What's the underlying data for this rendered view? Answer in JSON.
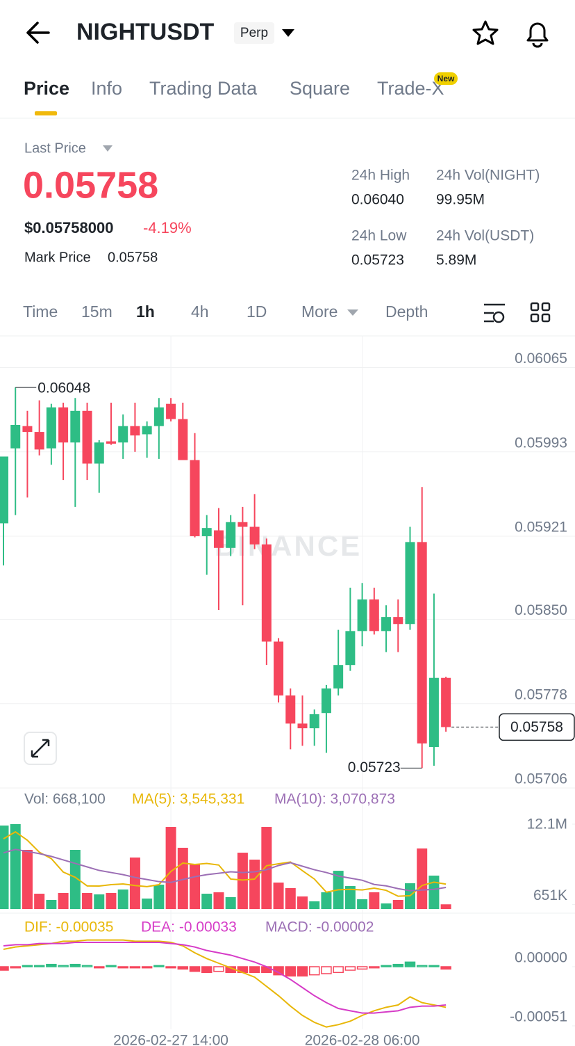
{
  "header": {
    "symbol": "NIGHTUSDT",
    "badge": "Perp"
  },
  "tabs": {
    "items": [
      "Price",
      "Info",
      "Trading Data",
      "Square",
      "Trade-X"
    ],
    "new_badge": "New"
  },
  "ticker": {
    "last_price_label": "Last Price",
    "last_price": "0.05758",
    "usd_price": "$0.05758000",
    "change": "-4.19%",
    "mark_label": "Mark Price",
    "mark_price": "0.05758",
    "stats": [
      {
        "label": "24h High",
        "value": "0.06040"
      },
      {
        "label": "24h Vol(NIGHT)",
        "value": "99.95M"
      },
      {
        "label": "24h Low",
        "value": "0.05723"
      },
      {
        "label": "24h Vol(USDT)",
        "value": "5.89M"
      }
    ]
  },
  "intervals": [
    "Time",
    "15m",
    "1h",
    "4h",
    "1D",
    "More",
    "Depth"
  ],
  "chart_data": [
    {
      "type": "candlestick",
      "watermark": "BINANCE",
      "up_color": "#2ebd85",
      "down_color": "#f6465d",
      "open": [
        0.05932,
        0.05996,
        0.06015,
        0.0601,
        0.05996,
        0.06031,
        0.06001,
        0.06028,
        0.05983,
        0.06002,
        0.06001,
        0.06015,
        0.06008,
        0.06015,
        0.06034,
        0.06021,
        0.05986,
        0.05921,
        0.05926,
        0.05911,
        0.05933,
        0.05929,
        0.05914,
        0.05831,
        0.05785,
        0.05761,
        0.05757,
        0.0577,
        0.05791,
        0.05811,
        0.0584,
        0.05867,
        0.0584,
        0.05852,
        0.05846,
        0.05916,
        0.05741,
        0.058
      ],
      "high": [
        0.05989,
        0.06048,
        0.06028,
        0.06037,
        0.06034,
        0.06035,
        0.06039,
        0.06035,
        0.06003,
        0.06035,
        0.06025,
        0.06035,
        0.06019,
        0.06039,
        0.06039,
        0.06035,
        0.06009,
        0.05939,
        0.05945,
        0.05939,
        0.05946,
        0.05957,
        0.05919,
        0.05834,
        0.05791,
        0.05785,
        0.05773,
        0.05794,
        0.05841,
        0.05877,
        0.05881,
        0.05877,
        0.05862,
        0.05867,
        0.05929,
        0.05963,
        0.05872,
        0.05801
      ],
      "low": [
        0.05896,
        0.05939,
        0.05954,
        0.0599,
        0.05982,
        0.05969,
        0.05946,
        0.05969,
        0.05958,
        0.05999,
        0.05987,
        0.05993,
        0.05988,
        0.05987,
        0.06019,
        0.05986,
        0.0592,
        0.05888,
        0.05858,
        0.05904,
        0.05862,
        0.0591,
        0.05811,
        0.05779,
        0.05739,
        0.05742,
        0.05742,
        0.05736,
        0.05785,
        0.05806,
        0.05827,
        0.05837,
        0.05822,
        0.05822,
        0.05841,
        0.05723,
        0.05725,
        0.05754
      ],
      "close": [
        0.05989,
        0.06016,
        0.0601,
        0.05995,
        0.06031,
        0.06001,
        0.06028,
        0.05983,
        0.06001,
        0.06,
        0.06015,
        0.06007,
        0.06015,
        0.06031,
        0.06021,
        0.05986,
        0.05921,
        0.05928,
        0.05911,
        0.05933,
        0.05929,
        0.05914,
        0.05831,
        0.05785,
        0.05761,
        0.05757,
        0.05769,
        0.05791,
        0.05811,
        0.0584,
        0.05867,
        0.0584,
        0.05852,
        0.05846,
        0.05916,
        0.05744,
        0.058,
        0.05758
      ],
      "ylim": [
        0.05706,
        0.06092
      ],
      "yticks": [
        0.06065,
        0.05993,
        0.05921,
        {
          "value": 0.0585,
          "label": "0.05850"
        },
        0.05778,
        0.05706
      ],
      "high_label": 0.06048,
      "low_label": 0.05723,
      "last_price_label": 0.05758
    },
    {
      "type": "bar",
      "legend": [
        {
          "text": "Vol: 668,100",
          "color": "#707a8a"
        },
        {
          "text": "MA(5): 3,545,331",
          "color": "#e8b709"
        },
        {
          "text": "MA(10): 3,070,873",
          "color": "#9c6fb5"
        }
      ],
      "values": [
        11900000,
        12100000,
        8430000,
        2180000,
        1290000,
        2280000,
        8430000,
        2280000,
        2080000,
        2280000,
        2780000,
        7340000,
        1490000,
        3470000,
        11700000,
        8730000,
        6350000,
        2180000,
        2380000,
        1690000,
        8030000,
        7040000,
        11700000,
        3770000,
        2980000,
        1790000,
        1090000,
        2380000,
        5450000,
        3270000,
        1390000,
        2380000,
        790000,
        1290000,
        3670000,
        8630000,
        4760000,
        668100
      ],
      "lines": [
        {
          "color": "#e8b709",
          "values": [
            10000000,
            11000000,
            9800000,
            8100000,
            7180000,
            5260000,
            4520000,
            3290000,
            3270000,
            3470000,
            3570000,
            3350000,
            3190000,
            3470000,
            5360000,
            6550000,
            6350000,
            6490000,
            6270000,
            4270000,
            4130000,
            4260000,
            6170000,
            6450000,
            6700000,
            5460000,
            4270000,
            2400000,
            2740000,
            2800000,
            2720000,
            2970000,
            2660000,
            1820000,
            1900000,
            3350000,
            3830000,
            3545331
          ]
        },
        {
          "color": "#9c6fb5",
          "values": [
            8000000,
            8500000,
            8200000,
            7900000,
            7500000,
            7000000,
            6500000,
            6000000,
            5500000,
            5200000,
            4900000,
            4500000,
            4200000,
            3900000,
            3800000,
            4200000,
            4600000,
            4900000,
            5100000,
            5300000,
            5200000,
            5300000,
            5600000,
            6200000,
            6600000,
            6100000,
            5600000,
            5200000,
            4700000,
            4400000,
            4100000,
            3500000,
            3300000,
            2900000,
            2600000,
            2700000,
            2800000,
            3070873
          ]
        }
      ],
      "ylim": [
        0,
        12100000
      ],
      "yticks": [
        {
          "value": 12100000,
          "label": "12.1M"
        },
        {
          "value": 651000,
          "label": "651K"
        }
      ]
    },
    {
      "type": "macd",
      "legend": [
        {
          "text": "DIF: -0.00035",
          "color": "#e8b709"
        },
        {
          "text": "DEA: -0.00033",
          "color": "#d63cc7"
        },
        {
          "text": "MACD: -0.00002",
          "color": "#9c6fb5"
        }
      ],
      "categories": [
        null,
        null,
        null,
        null,
        null,
        null,
        null,
        null,
        null,
        null,
        null,
        null,
        null,
        null,
        "2026-02-27 14:00",
        null,
        null,
        null,
        null,
        null,
        null,
        null,
        null,
        null,
        null,
        null,
        null,
        null,
        null,
        null,
        "2026-02-28 06:00",
        null,
        null,
        null,
        null,
        null,
        null,
        null
      ],
      "histogram": [
        -3e-05,
        -1e-05,
        1e-05,
        1e-05,
        2e-05,
        1e-05,
        2e-05,
        1e-05,
        -1e-05,
        1e-05,
        -1e-05,
        -1e-05,
        -1e-05,
        1e-05,
        -1e-05,
        -2e-05,
        -4e-05,
        -5e-05,
        -4e-05,
        -5e-05,
        -5e-05,
        -5e-05,
        -5e-05,
        -7e-05,
        -8e-05,
        -8e-05,
        -7e-05,
        -6e-05,
        -5e-05,
        -3e-05,
        -2e-05,
        -1e-05,
        1e-05,
        2e-05,
        4e-05,
        1e-05,
        1e-05,
        -2e-05
      ],
      "lines": [
        {
          "color": "#e8b709",
          "values": [
            0.00015,
            0.00017,
            0.00018,
            0.00019,
            0.0002,
            0.00022,
            0.00022,
            0.00023,
            0.00023,
            0.00023,
            0.00023,
            0.00022,
            0.00022,
            0.00022,
            0.00021,
            0.00018,
            0.00012,
            7e-05,
            3e-05,
            -1e-05,
            -5e-05,
            -9e-05,
            -0.00017,
            -0.00025,
            -0.00034,
            -0.00042,
            -0.00048,
            -0.00052,
            -0.0005,
            -0.00047,
            -0.00042,
            -0.00038,
            -0.00035,
            -0.00033,
            -0.00026,
            -0.00031,
            -0.00033,
            -0.00035
          ]
        },
        {
          "color": "#d63cc7",
          "values": [
            0.00018,
            0.00019,
            0.00019,
            0.0002,
            0.0002,
            0.0002,
            0.00021,
            0.00021,
            0.00021,
            0.00021,
            0.00021,
            0.00021,
            0.00021,
            0.00021,
            0.0002,
            0.00019,
            0.00017,
            0.00014,
            0.00012,
            0.0001,
            7e-05,
            4e-05,
            0,
            -5e-05,
            -0.00011,
            -0.00018,
            -0.00025,
            -0.00031,
            -0.00036,
            -0.00038,
            -0.0004,
            -0.0004,
            -0.00039,
            -0.00038,
            -0.00035,
            -0.00034,
            -0.00034,
            -0.00033
          ]
        }
      ],
      "ylim": [
        -0.00054,
        0.00042
      ],
      "yticks": [
        {
          "value": 0,
          "label": "0.00000"
        },
        {
          "value": -0.00051,
          "label": "-0.00051"
        }
      ]
    }
  ]
}
